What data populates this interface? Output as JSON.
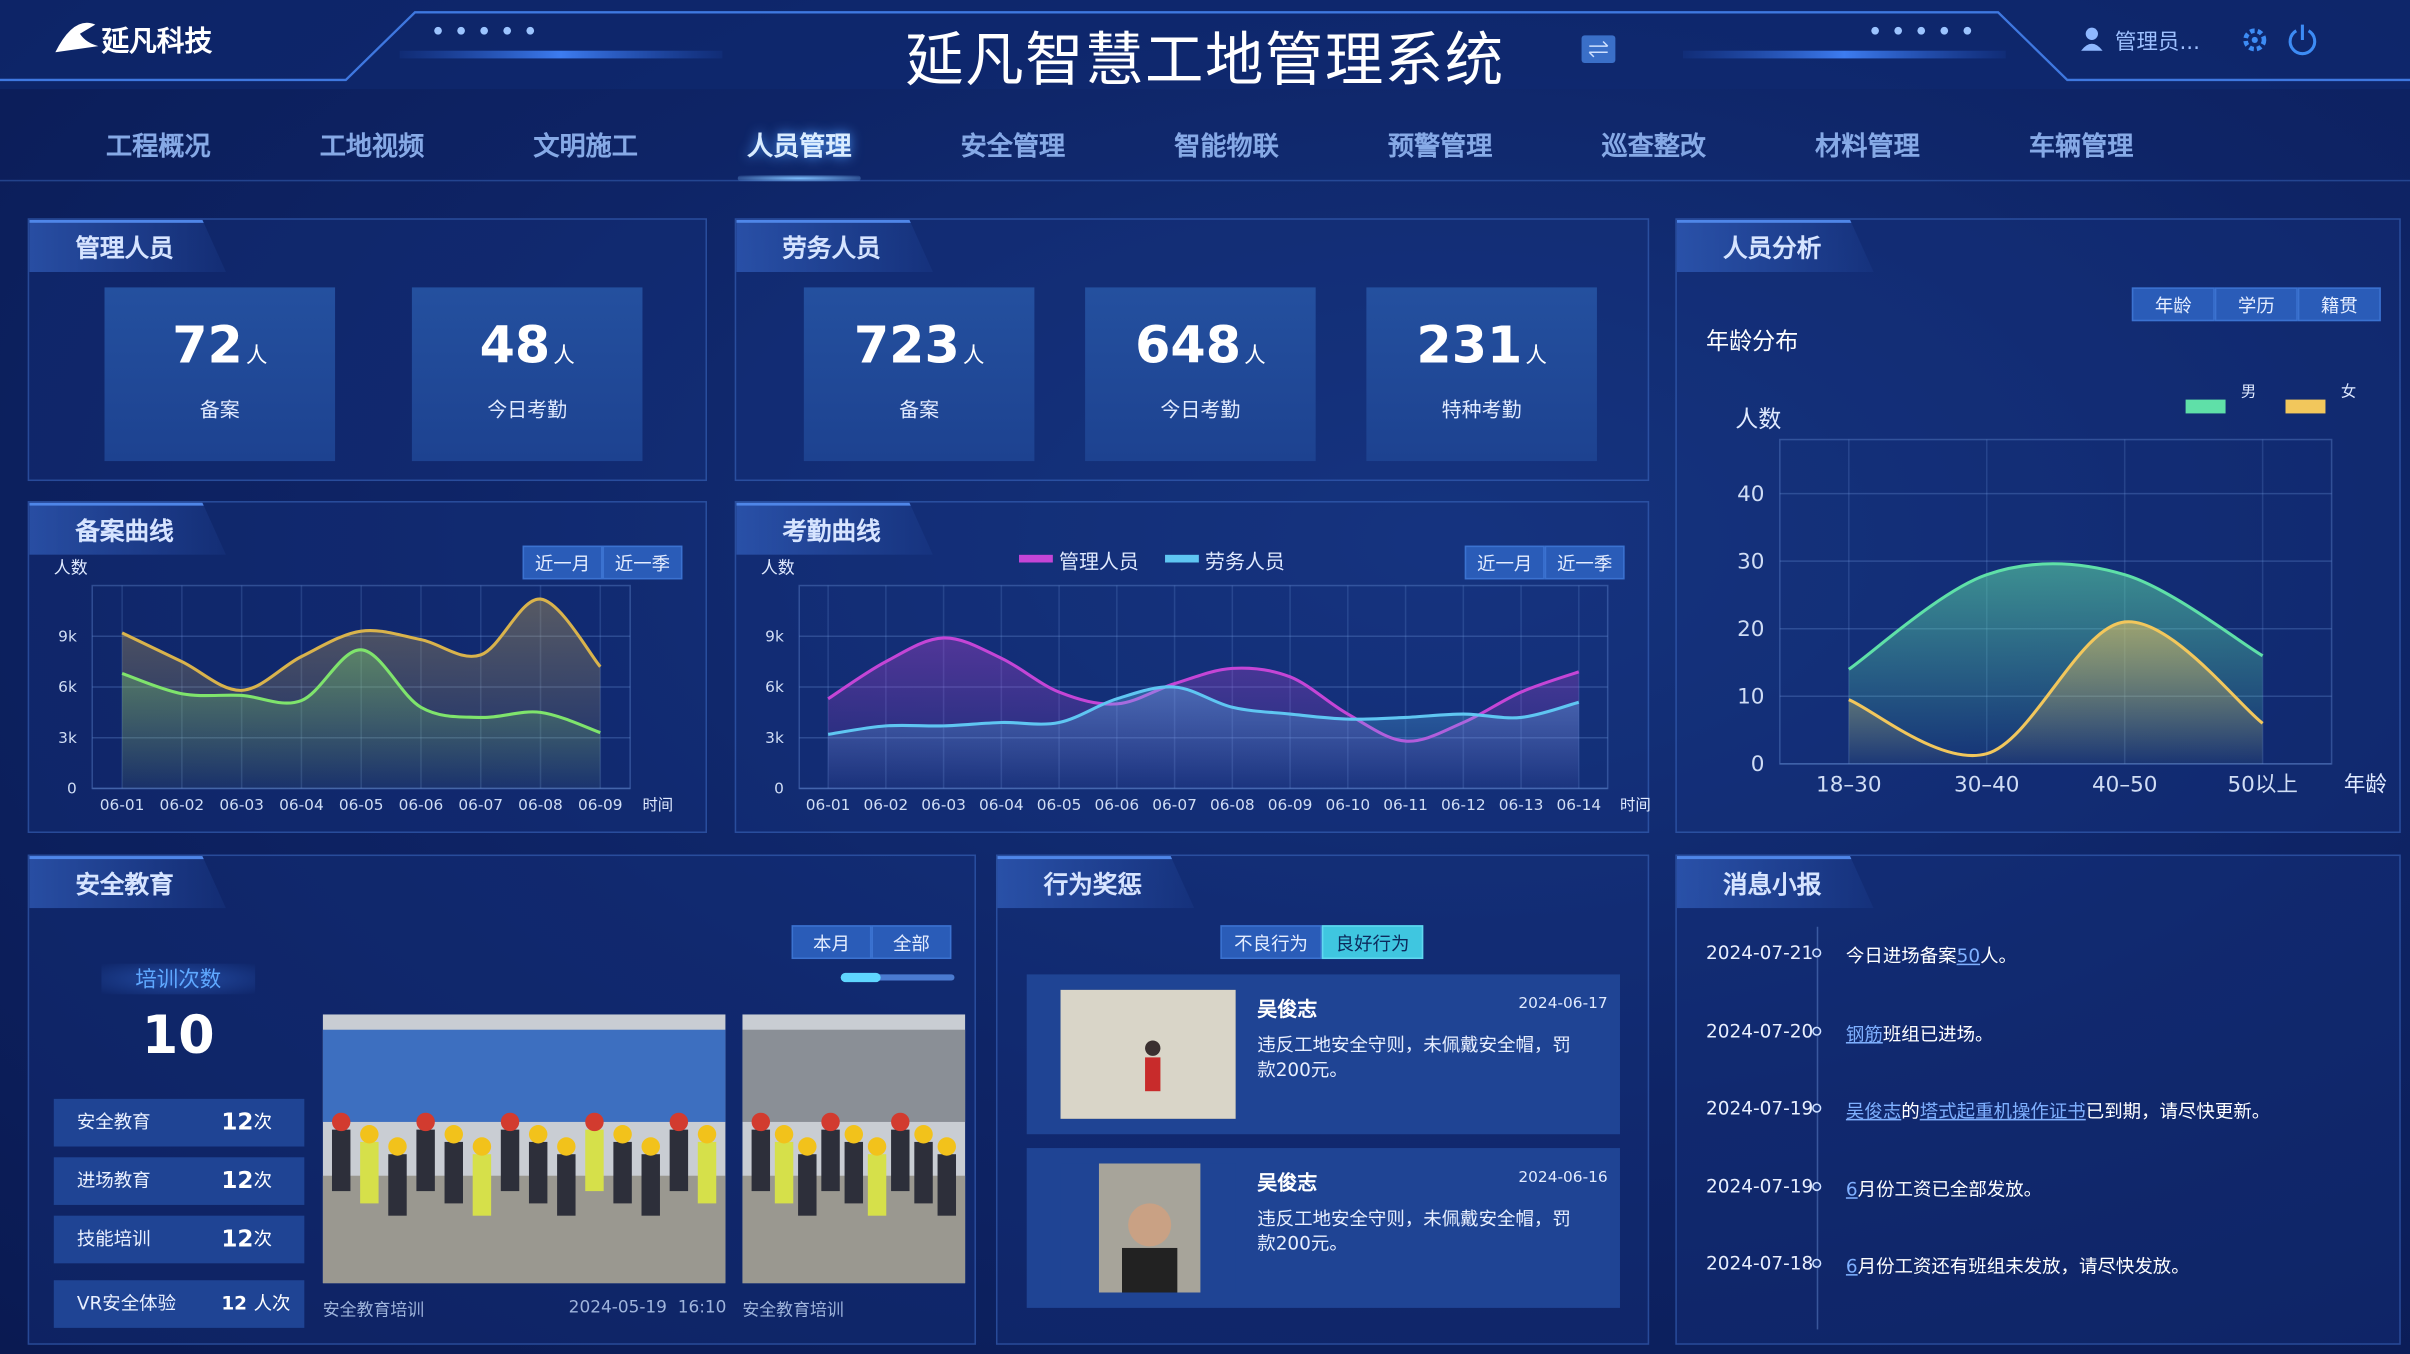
{
  "header": {
    "logo": "延凡科技",
    "title": "延凡智慧工地管理系统",
    "user": "管理员..."
  },
  "nav": {
    "items": [
      "工程概况",
      "工地视频",
      "文明施工",
      "人员管理",
      "安全管理",
      "智能物联",
      "预警管理",
      "巡查整改",
      "材料管理",
      "车辆管理"
    ],
    "active": 3
  },
  "management": {
    "title": "管理人员",
    "stats": [
      {
        "value": 72,
        "unit": "人",
        "label": "备案"
      },
      {
        "value": 48,
        "unit": "人",
        "label": "今日考勤"
      }
    ]
  },
  "labor": {
    "title": "劳务人员",
    "stats": [
      {
        "value": 723,
        "unit": "人",
        "label": "备案"
      },
      {
        "value": 648,
        "unit": "人",
        "label": "今日考勤"
      },
      {
        "value": 231,
        "unit": "人",
        "label": "特种考勤"
      }
    ]
  },
  "record_curve": {
    "title": "备案曲线",
    "buttons": [
      "近一月",
      "近一季"
    ],
    "chart": {
      "type": "line",
      "y_label": "人数",
      "x_label": "时间",
      "categories": [
        "06-01",
        "06-02",
        "06-03",
        "06-04",
        "06-05",
        "06-06",
        "06-07",
        "06-08",
        "06-09"
      ],
      "series": [
        {
          "color": "#d9b34c",
          "values": [
            9200,
            7500,
            5800,
            7800,
            9300,
            8800,
            7900,
            11200,
            7200
          ]
        },
        {
          "color": "#7fe46c",
          "values": [
            6800,
            5600,
            5500,
            5200,
            8200,
            4800,
            4200,
            4500,
            3300
          ]
        }
      ],
      "ylim": [
        0,
        12000
      ],
      "yticks": [
        0,
        {
          "value": 3000,
          "label": "3k"
        },
        {
          "value": 6000,
          "label": "6k"
        },
        {
          "value": 9000,
          "label": "9k"
        }
      ],
      "grid": true
    }
  },
  "attendance_curve": {
    "title": "考勤曲线",
    "buttons": [
      "近一月",
      "近一季"
    ],
    "chart": {
      "type": "line",
      "y_label": "人数",
      "x_label": "时间",
      "legend": "top",
      "categories": [
        "06-01",
        "06-02",
        "06-03",
        "06-04",
        "06-05",
        "06-06",
        "06-07",
        "06-08",
        "06-09",
        "06-10",
        "06-11",
        "06-12",
        "06-13",
        "06-14"
      ],
      "series": [
        {
          "name": "管理人员",
          "color": "#c445d6",
          "values": [
            5300,
            7500,
            8900,
            7700,
            5700,
            5000,
            6200,
            7100,
            6600,
            4400,
            2800,
            3900,
            5700,
            6900
          ]
        },
        {
          "name": "劳务人员",
          "color": "#5fc6f2",
          "values": [
            3200,
            3700,
            3700,
            3900,
            3900,
            5300,
            6000,
            4800,
            4400,
            4100,
            4200,
            4400,
            4200,
            5100
          ]
        }
      ],
      "ylim": [
        0,
        12000
      ],
      "yticks": [
        0,
        {
          "value": 3000,
          "label": "3k"
        },
        {
          "value": 6000,
          "label": "6k"
        },
        {
          "value": 9000,
          "label": "9k"
        }
      ],
      "grid": true
    }
  },
  "analysis": {
    "title": "人员分析",
    "tabs": [
      "年龄",
      "学历",
      "籍贯"
    ],
    "subtitle": "年龄分布",
    "chart": {
      "type": "area",
      "y_label": "人数",
      "x_label": "年龄",
      "legend": "top-right",
      "categories": [
        "18–30",
        "30–40",
        "40–50",
        "50以上"
      ],
      "series": [
        {
          "name": "男",
          "color": "#5fe0a8",
          "values": [
            14,
            28,
            28,
            16
          ]
        },
        {
          "name": "女",
          "color": "#f2c75c",
          "values": [
            9.5,
            1.5,
            21,
            6
          ]
        }
      ],
      "ylim": [
        0,
        48
      ],
      "yticks": [
        0,
        10,
        20,
        30,
        40
      ],
      "grid": true
    }
  },
  "safety": {
    "title": "安全教育",
    "tabs": [
      "本月",
      "全部"
    ],
    "count_label": "培训次数",
    "count": 10,
    "items": [
      {
        "name": "安全教育",
        "value": 12,
        "unit": "次"
      },
      {
        "name": "进场教育",
        "value": 12,
        "unit": "次"
      },
      {
        "name": "技能培训",
        "value": 12,
        "unit": "次"
      },
      {
        "name": "VR安全体验",
        "value": 12,
        "unit": "人次"
      }
    ],
    "photos": [
      {
        "caption": "安全教育培训",
        "time": "2024-05-19  16:10"
      },
      {
        "caption": "安全教育培训"
      }
    ]
  },
  "behavior": {
    "title": "行为奖惩",
    "tabs": [
      "不良行为",
      "良好行为"
    ],
    "active_tab": 1,
    "records": [
      {
        "name": "吴俊志",
        "date": "2024-06-17",
        "text": "违反工地安全守则，未佩戴安全帽，罚款200元。"
      },
      {
        "name": "吴俊志",
        "date": "2024-06-16",
        "text": "违反工地安全守则，未佩戴安全帽，罚款200元。"
      }
    ]
  },
  "news": {
    "title": "消息小报",
    "items": [
      {
        "date": "2024-07-21",
        "parts": [
          {
            "text": "今日进场备案"
          },
          {
            "text": "50",
            "link": true
          },
          {
            "text": "人。"
          }
        ]
      },
      {
        "date": "2024-07-20",
        "parts": [
          {
            "text": "钢筋",
            "link": true
          },
          {
            "text": "班组已进场。"
          }
        ]
      },
      {
        "date": "2024-07-19",
        "parts": [
          {
            "text": "吴俊志",
            "link": true
          },
          {
            "text": "的"
          },
          {
            "text": "塔式起重机操作证书",
            "link": true
          },
          {
            "text": "已到期，请尽快更新。"
          }
        ]
      },
      {
        "date": "2024-07-19",
        "parts": [
          {
            "text": "6",
            "link": true
          },
          {
            "text": "月份工资已全部发放。"
          }
        ]
      },
      {
        "date": "2024-07-18",
        "parts": [
          {
            "text": "6",
            "link": true
          },
          {
            "text": "月份工资还有班组未发放，请尽快发放。"
          }
        ]
      }
    ]
  }
}
